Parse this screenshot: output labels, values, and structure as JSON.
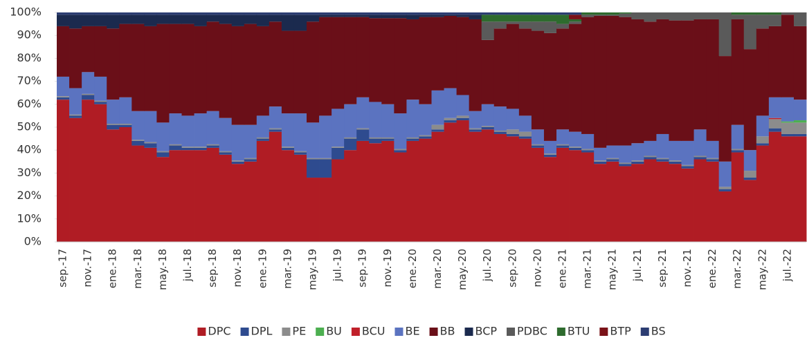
{
  "chart_data": {
    "type": "stacked-step",
    "categories": [
      "sep.-17",
      null,
      "nov.-17",
      null,
      "ene.-18",
      null,
      "mar.-18",
      null,
      "may.-18",
      null,
      "jul.-18",
      null,
      "sep.-18",
      null,
      "nov.-18",
      null,
      "ene.-19",
      null,
      "mar.-19",
      null,
      "may.-19",
      null,
      "jul.-19",
      null,
      "sep.-19",
      null,
      "nov.-19",
      null,
      "ene.-20",
      null,
      "mar.-20",
      null,
      "may.-20",
      null,
      "jul.-20",
      null,
      "sep.-20",
      null,
      "nov.-20",
      null,
      "ene.-21",
      null,
      "mar.-21",
      null,
      "may.-21",
      null,
      "jul.-21",
      null,
      "sep.-21",
      null,
      "nov.-21",
      null,
      "ene.-22",
      null,
      "mar.-22",
      null,
      "may.-22",
      null,
      "jul.-22",
      null
    ],
    "ylim": [
      0,
      100
    ],
    "yticks": [
      {
        "value": 0,
        "label": "0%"
      },
      {
        "value": 10,
        "label": "10%"
      },
      {
        "value": 20,
        "label": "20%"
      },
      {
        "value": 30,
        "label": "30%"
      },
      {
        "value": 40,
        "label": "40%"
      },
      {
        "value": 50,
        "label": "50%"
      },
      {
        "value": 60,
        "label": "60%"
      },
      {
        "value": 70,
        "label": "70%"
      },
      {
        "value": 80,
        "label": "80%"
      },
      {
        "value": 90,
        "label": "90%"
      },
      {
        "value": 100,
        "label": "100%"
      }
    ],
    "legend": "bottom",
    "series": [
      {
        "name": "DPC",
        "color": "#b01c24",
        "values": [
          62,
          54,
          62,
          60,
          49,
          50,
          42,
          41,
          37,
          40,
          40,
          40,
          41,
          38,
          34,
          35,
          44,
          48,
          40,
          38,
          28,
          28,
          36,
          40,
          44,
          43,
          44,
          39,
          44,
          45,
          48,
          52,
          53,
          48,
          49,
          47,
          46,
          45,
          41,
          37,
          41,
          40,
          39,
          34,
          35,
          33,
          34,
          36,
          35,
          34,
          32,
          36,
          35,
          22,
          39,
          27,
          42,
          48,
          46,
          46
        ]
      },
      {
        "name": "DPL",
        "color": "#2e4b8f",
        "values": [
          1,
          1,
          2,
          1,
          2,
          1,
          2,
          2,
          2,
          2,
          1,
          1,
          1,
          1,
          1,
          1,
          1,
          1,
          1,
          1,
          8,
          8,
          5,
          5,
          5,
          2,
          1,
          1,
          1,
          1,
          1,
          1,
          1,
          1,
          1,
          1,
          1,
          1,
          1,
          1,
          1,
          1,
          1,
          1,
          1,
          1,
          1,
          1,
          1,
          1,
          1,
          1,
          1,
          1,
          1,
          1,
          1,
          1.5,
          1,
          1
        ]
      },
      {
        "name": "PE",
        "color": "#8c8c8c",
        "values": [
          0.5,
          0.5,
          0.5,
          0.5,
          0.5,
          0.5,
          0.5,
          0.5,
          0.5,
          0.5,
          0.5,
          0.5,
          0.5,
          0.5,
          0.5,
          0.5,
          0.5,
          0.5,
          0.5,
          0.5,
          0.5,
          0.5,
          0.5,
          0.5,
          0.5,
          0.5,
          0.5,
          0.5,
          0.5,
          0.5,
          2,
          1,
          1,
          0.5,
          0.5,
          0.5,
          2,
          2,
          0.5,
          0.5,
          0.5,
          0.5,
          0.5,
          0.5,
          0.5,
          0.5,
          0.5,
          0.5,
          0.5,
          0.5,
          0.5,
          0.5,
          0.5,
          1,
          0.5,
          3,
          3,
          4,
          5,
          5
        ]
      },
      {
        "name": "BU",
        "color": "#4caf50",
        "values": [
          0,
          0,
          0,
          0,
          0,
          0,
          0,
          0,
          0,
          0,
          0,
          0,
          0,
          0,
          0,
          0,
          0,
          0,
          0,
          0,
          0,
          0,
          0,
          0,
          0,
          0,
          0,
          0,
          0,
          0,
          0,
          0,
          0,
          0,
          0,
          0,
          0,
          0,
          0,
          0,
          0,
          0,
          0,
          0,
          0,
          0,
          0,
          0,
          0,
          0,
          0,
          0,
          0,
          0,
          0,
          0,
          0,
          0,
          0.5,
          1
        ]
      },
      {
        "name": "BCU",
        "color": "#c0202a",
        "values": [
          0,
          0,
          0,
          0,
          0,
          0,
          0,
          0,
          0,
          0,
          0,
          0,
          0,
          0,
          0,
          0,
          0,
          0,
          0,
          0,
          0,
          0,
          0,
          0,
          0,
          0,
          0,
          0,
          0,
          0,
          0,
          0,
          0,
          0,
          0,
          0,
          0,
          0,
          0,
          0,
          0,
          0,
          0,
          0,
          0,
          0,
          0,
          0,
          0,
          0,
          0,
          0,
          0,
          0,
          0,
          0,
          0,
          0.5,
          0,
          0
        ]
      },
      {
        "name": "BE",
        "color": "#5b73c0",
        "values": [
          8.5,
          11.5,
          9.5,
          10.5,
          10.5,
          11.5,
          12.5,
          13.5,
          12.5,
          13.5,
          13.5,
          14.5,
          14.5,
          14.5,
          15.5,
          14.5,
          9.5,
          9.5,
          14.5,
          16.5,
          15.5,
          18.5,
          16.5,
          14.5,
          13.5,
          15.5,
          14.5,
          15.5,
          16.5,
          13.5,
          15,
          13,
          9,
          7.5,
          9.5,
          10.5,
          9,
          7,
          6.5,
          5.5,
          6.5,
          6.5,
          6.5,
          5.5,
          5.5,
          7.5,
          7.5,
          6.5,
          10.5,
          8.5,
          10.5,
          11.5,
          7.5,
          11,
          10.5,
          9,
          9,
          9,
          10.5,
          9
        ]
      },
      {
        "name": "BB",
        "color": "#6a0f18",
        "values": [
          22,
          26,
          20,
          22,
          31,
          32,
          38,
          37,
          43,
          39,
          40,
          38,
          39,
          41,
          43,
          44,
          39,
          37,
          36,
          36,
          44,
          43,
          40,
          38,
          35,
          36.5,
          37.5,
          41.5,
          35,
          38,
          32,
          31.5,
          34,
          40,
          28,
          34,
          37,
          38,
          43,
          47,
          44,
          47,
          51,
          57.5,
          56.5,
          56,
          54,
          52,
          50,
          52.5,
          52.5,
          48,
          53,
          46,
          46,
          44,
          38,
          31,
          36,
          32
        ]
      },
      {
        "name": "BCP",
        "color": "#1b2a4e",
        "values": [
          5,
          6,
          5,
          5,
          6,
          4,
          4,
          5,
          4,
          4,
          4,
          5,
          3,
          4,
          5,
          4,
          5,
          3,
          7,
          7,
          3,
          1,
          1,
          1,
          1,
          1.5,
          1.5,
          1.5,
          2,
          1,
          1,
          0.5,
          1,
          2,
          0,
          0,
          0,
          0,
          0,
          0,
          0,
          0,
          0,
          0,
          0,
          0,
          0,
          0,
          0,
          0,
          0,
          0,
          0,
          0,
          0,
          0,
          0,
          0,
          0,
          0
        ]
      },
      {
        "name": "PDBC",
        "color": "#5a5a5a",
        "values": [
          0,
          0,
          0,
          0,
          0,
          0,
          0,
          0,
          0,
          0,
          0,
          0,
          0,
          0,
          0,
          0,
          0,
          0,
          0,
          0,
          0,
          0,
          0,
          0,
          0,
          0,
          0,
          0,
          0,
          0,
          0,
          0,
          0,
          0,
          8,
          3,
          1,
          3,
          4,
          5,
          2,
          1,
          1,
          0.5,
          0.5,
          1.5,
          3,
          4,
          3,
          3.5,
          3.5,
          3,
          3,
          19,
          2,
          15,
          6,
          5,
          1,
          6
        ]
      },
      {
        "name": "BTU",
        "color": "#2e6b2e",
        "values": [
          0,
          0,
          0,
          0,
          0,
          0,
          0,
          0,
          0,
          0,
          0,
          0,
          0,
          0,
          0,
          0,
          0,
          0,
          0,
          0,
          0,
          0,
          0,
          0,
          0,
          0,
          0,
          0,
          0,
          0,
          0,
          0,
          0,
          0,
          3,
          3,
          3,
          3,
          3,
          3,
          4,
          1,
          1,
          1,
          1,
          0.5,
          0,
          0,
          0,
          0,
          0,
          0,
          0,
          0,
          1,
          1,
          1,
          1,
          0,
          0
        ]
      },
      {
        "name": "BTP",
        "color": "#7a1218",
        "values": [
          0,
          0,
          0,
          0,
          0,
          0,
          0,
          0,
          0,
          0,
          0,
          0,
          0,
          0,
          0,
          0,
          0,
          0,
          0,
          0,
          0,
          0,
          0,
          0,
          0,
          0,
          0,
          0,
          0,
          0,
          0,
          0,
          0,
          0,
          0,
          0,
          0,
          0,
          0,
          0,
          0,
          2,
          0,
          0,
          0,
          0,
          0,
          0,
          0,
          0,
          0,
          0,
          0,
          0,
          0,
          0,
          0,
          0,
          0,
          0
        ]
      },
      {
        "name": "BS",
        "color": "#2c3d72",
        "values": [
          1,
          1,
          1,
          1,
          1,
          1,
          1,
          1,
          1,
          1,
          1,
          1,
          1,
          1,
          1,
          1,
          1,
          1,
          1,
          1,
          1,
          1,
          1,
          1,
          1,
          1,
          1,
          1,
          1,
          1,
          1,
          1,
          1,
          1,
          1,
          1,
          1,
          1,
          1,
          1,
          1,
          1,
          0,
          0,
          0,
          0,
          0,
          0,
          0,
          0,
          0,
          0,
          0,
          0,
          0,
          0,
          0,
          0,
          0,
          0
        ]
      }
    ]
  }
}
